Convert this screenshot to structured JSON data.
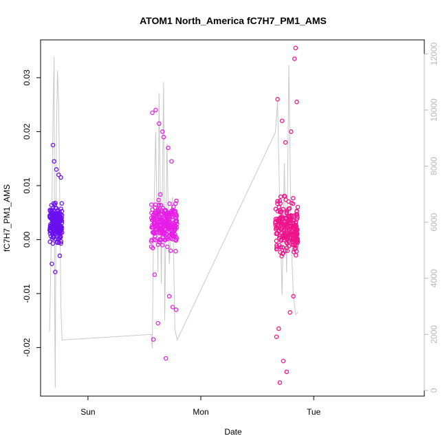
{
  "chart_data": {
    "type": "scatter",
    "title": "ATOM1 North_America fC7H7_PM1_AMS",
    "xlabel": "Date",
    "ylabel": "fC7H7_PM1_AMS",
    "x_ticks": [
      {
        "label": "Sun",
        "day": 1.0
      },
      {
        "label": "Mon",
        "day": 2.0
      },
      {
        "label": "Tue",
        "day": 3.0
      }
    ],
    "xlim_days": [
      0.58,
      3.98
    ],
    "ylim": [
      -0.029,
      0.037
    ],
    "y_ticks": [
      -0.02,
      -0.01,
      0.0,
      0.01,
      0.02,
      0.03
    ],
    "y_tick_labels": [
      "-0.02",
      "-0.01",
      "0.00",
      "0.01",
      "0.02",
      "0.03"
    ],
    "secondary_axis": {
      "ylim": [
        -200,
        12500
      ],
      "ticks": [
        0,
        2000,
        4000,
        6000,
        8000,
        10000,
        12000
      ],
      "tick_labels": [
        "0",
        "2000",
        "4000",
        "6000",
        "8000",
        "10000",
        "12000"
      ],
      "color": "#b8b8b8"
    },
    "grid": false,
    "series": [
      {
        "role": "scatter-cluster",
        "color": "#6a0ff0",
        "x_range_days": [
          0.66,
          0.77
        ],
        "y_center": 0.003,
        "y_spread": 0.004,
        "n_points": 180,
        "x_outliers": [
          0.69,
          0.7,
          0.72,
          0.74,
          0.76,
          0.71,
          0.68,
          0.75
        ],
        "y_outliers": [
          0.0175,
          0.0145,
          0.013,
          0.012,
          0.0115,
          -0.006,
          -0.0045,
          -0.003
        ]
      },
      {
        "role": "scatter-cluster",
        "color": "#e61ee6",
        "x_range_days": [
          1.56,
          1.79
        ],
        "y_center": 0.003,
        "y_spread": 0.005,
        "n_points": 230,
        "x_outliers": [
          1.57,
          1.6,
          1.63,
          1.66,
          1.58,
          1.62,
          1.69,
          1.72,
          1.75,
          1.78,
          1.59,
          1.67,
          1.71,
          1.74
        ],
        "y_outliers": [
          0.0235,
          0.024,
          0.0215,
          0.02,
          -0.0185,
          -0.0155,
          -0.022,
          -0.0105,
          -0.0125,
          -0.013,
          -0.0065,
          0.019,
          0.017,
          0.0145
        ]
      },
      {
        "role": "scatter-cluster",
        "color": "#f0148c",
        "x_range_days": [
          2.66,
          2.86
        ],
        "y_center": 0.002,
        "y_spread": 0.006,
        "n_points": 230,
        "x_outliers": [
          2.84,
          2.83,
          2.68,
          2.7,
          2.76,
          2.73,
          2.67,
          2.69,
          2.79,
          2.85,
          2.72,
          2.8,
          2.75,
          2.82
        ],
        "y_outliers": [
          0.0355,
          0.0335,
          0.026,
          -0.0265,
          -0.0245,
          -0.0225,
          -0.018,
          -0.0165,
          -0.0135,
          0.0255,
          0.022,
          0.02,
          0.018,
          -0.0105
        ]
      },
      {
        "role": "time-series-line",
        "axis": "secondary",
        "color": "#c8c8c8",
        "x": [
          0.66,
          0.68,
          0.69,
          0.7,
          0.705,
          0.71,
          0.715,
          0.72,
          0.73,
          0.74,
          0.75,
          0.76,
          0.77,
          1.56,
          1.57,
          1.58,
          1.6,
          1.62,
          1.63,
          1.65,
          1.67,
          1.68,
          1.7,
          1.72,
          1.75,
          1.77,
          1.79,
          2.66,
          2.68,
          2.7,
          2.72,
          2.74,
          2.76,
          2.78,
          2.8,
          2.82,
          2.84,
          2.86
        ],
        "y": [
          2100,
          6500,
          9800,
          11900,
          3200,
          100,
          5200,
          9000,
          11400,
          10200,
          6800,
          3000,
          1800,
          2000,
          1500,
          5500,
          9200,
          4200,
          10600,
          3800,
          11000,
          2500,
          8800,
          4500,
          6900,
          2200,
          1800,
          9200,
          10300,
          6500,
          3400,
          8100,
          4200,
          11600,
          5400,
          3400,
          2700,
          2800
        ]
      }
    ]
  }
}
